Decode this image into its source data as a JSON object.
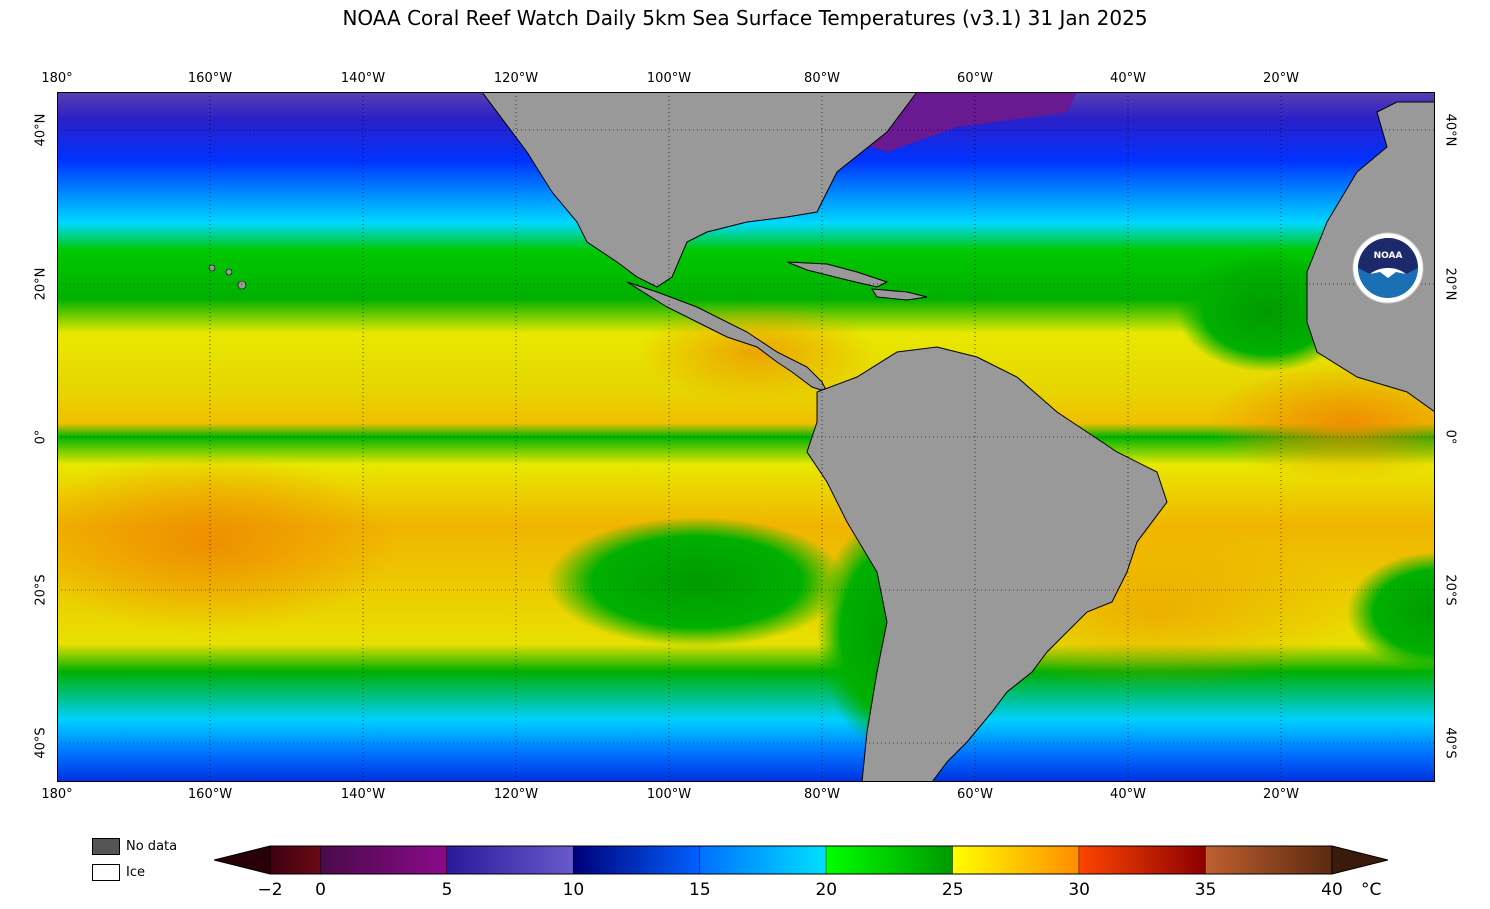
{
  "title": "NOAA Coral Reef Watch Daily 5km Sea Surface Temperatures  (v3.1)   31 Jan 2025",
  "lon_labels": [
    "180°",
    "160°W",
    "140°W",
    "120°W",
    "100°W",
    "80°W",
    "60°W",
    "40°W",
    "20°W"
  ],
  "lat_labels": [
    "40°N",
    "20°N",
    "0°",
    "20°S",
    "40°S"
  ],
  "legend": {
    "no_data": "No data",
    "ice": "Ice",
    "no_data_color": "#555555",
    "ice_color": "#ffffff"
  },
  "land_color": "#999999",
  "logo": {
    "text": "NOAA",
    "color": "#1c2a6b",
    "accent": "#1a6fb5"
  },
  "colorbar": {
    "ticks": [
      "−2",
      "0",
      "5",
      "10",
      "15",
      "20",
      "25",
      "30",
      "35",
      "40"
    ],
    "unit": "°C",
    "range": [
      -2,
      40
    ],
    "segments": [
      {
        "from": -2,
        "to": 0,
        "colors": [
          "#3d0010",
          "#6b0a14"
        ]
      },
      {
        "from": 0,
        "to": 5,
        "colors": [
          "#4a0a4a",
          "#8a0a8a"
        ]
      },
      {
        "from": 5,
        "to": 10,
        "colors": [
          "#2a1a9a",
          "#6a5acd"
        ]
      },
      {
        "from": 10,
        "to": 15,
        "colors": [
          "#00007a",
          "#0060ff"
        ]
      },
      {
        "from": 15,
        "to": 20,
        "colors": [
          "#0070ff",
          "#00e0ff"
        ]
      },
      {
        "from": 20,
        "to": 25,
        "colors": [
          "#00ff00",
          "#009900"
        ]
      },
      {
        "from": 25,
        "to": 30,
        "colors": [
          "#ffff00",
          "#ff8c00"
        ]
      },
      {
        "from": 30,
        "to": 35,
        "colors": [
          "#ff4500",
          "#8b0000"
        ]
      },
      {
        "from": 35,
        "to": 40,
        "colors": [
          "#c06030",
          "#5a2a10"
        ]
      }
    ],
    "low_arrow_color": "#2a0008",
    "high_arrow_color": "#3a1a0a"
  }
}
